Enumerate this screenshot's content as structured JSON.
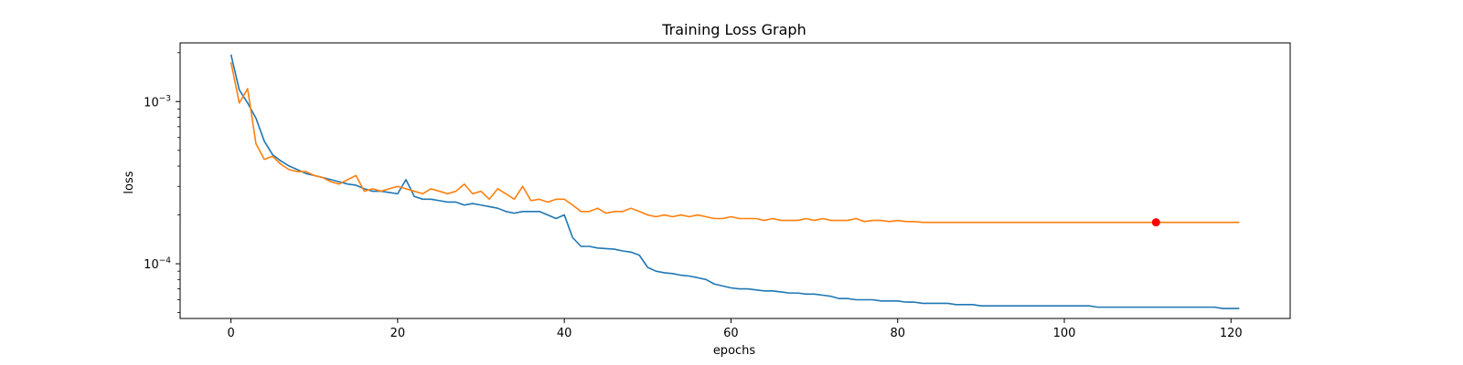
{
  "chart_data": {
    "type": "line",
    "title": "Training Loss Graph",
    "xlabel": "epochs",
    "ylabel": "loss",
    "yscale": "log",
    "xlim": [
      -6.1,
      127.1
    ],
    "ylim": [
      4.6e-05,
      0.0023
    ],
    "grid": false,
    "legend": "none",
    "x_ticks": [
      {
        "value": 0,
        "label": "0"
      },
      {
        "value": 20,
        "label": "20"
      },
      {
        "value": 40,
        "label": "40"
      },
      {
        "value": 60,
        "label": "60"
      },
      {
        "value": 80,
        "label": "80"
      },
      {
        "value": 100,
        "label": "100"
      },
      {
        "value": 120,
        "label": "120"
      }
    ],
    "y_major_ticks": [
      {
        "value": 0.0001,
        "base": "10",
        "exp": "−4"
      },
      {
        "value": 0.001,
        "base": "10",
        "exp": "−3"
      }
    ],
    "y_minor_ticks": [
      5e-05,
      6e-05,
      7e-05,
      8e-05,
      9e-05,
      0.0002,
      0.0003,
      0.0004,
      0.0005,
      0.0006,
      0.0007,
      0.0008,
      0.0009,
      0.002
    ],
    "series": [
      {
        "color": "#1f77b4",
        "values": [
          0.00195,
          0.00118,
          0.00098,
          0.00079,
          0.00057,
          0.00047,
          0.00043,
          0.0004,
          0.00038,
          0.00036,
          0.00035,
          0.00034,
          0.00033,
          0.00032,
          0.00031,
          0.000305,
          0.00029,
          0.00028,
          0.00028,
          0.000275,
          0.00027,
          0.00033,
          0.00026,
          0.00025,
          0.00025,
          0.000245,
          0.00024,
          0.00024,
          0.00023,
          0.000235,
          0.00023,
          0.000225,
          0.00022,
          0.00021,
          0.000205,
          0.00021,
          0.00021,
          0.00021,
          0.0002,
          0.00019,
          0.0002,
          0.000145,
          0.000128,
          0.000128,
          0.000125,
          0.000124,
          0.000123,
          0.00012,
          0.000118,
          0.000113,
          9.5e-05,
          9e-05,
          8.8e-05,
          8.7e-05,
          8.5e-05,
          8.4e-05,
          8.2e-05,
          8e-05,
          7.5e-05,
          7.3e-05,
          7.1e-05,
          7e-05,
          7e-05,
          6.9e-05,
          6.8e-05,
          6.8e-05,
          6.7e-05,
          6.6e-05,
          6.6e-05,
          6.5e-05,
          6.5e-05,
          6.4e-05,
          6.3e-05,
          6.1e-05,
          6.1e-05,
          6e-05,
          6e-05,
          6e-05,
          5.9e-05,
          5.9e-05,
          5.9e-05,
          5.8e-05,
          5.8e-05,
          5.7e-05,
          5.7e-05,
          5.7e-05,
          5.7e-05,
          5.6e-05,
          5.6e-05,
          5.6e-05,
          5.5e-05,
          5.5e-05,
          5.5e-05,
          5.5e-05,
          5.5e-05,
          5.5e-05,
          5.5e-05,
          5.5e-05,
          5.5e-05,
          5.5e-05,
          5.5e-05,
          5.5e-05,
          5.5e-05,
          5.5e-05,
          5.4e-05,
          5.4e-05,
          5.4e-05,
          5.4e-05,
          5.4e-05,
          5.4e-05,
          5.4e-05,
          5.4e-05,
          5.4e-05,
          5.4e-05,
          5.4e-05,
          5.4e-05,
          5.4e-05,
          5.4e-05,
          5.4e-05,
          5.3e-05,
          5.3e-05,
          5.3e-05
        ]
      },
      {
        "color": "#ff7f0e",
        "values": [
          0.00175,
          0.00098,
          0.0012,
          0.00055,
          0.00044,
          0.00046,
          0.00041,
          0.00038,
          0.00037,
          0.00037,
          0.00035,
          0.00034,
          0.00032,
          0.00031,
          0.00033,
          0.00035,
          0.00028,
          0.00029,
          0.00028,
          0.00029,
          0.0003,
          0.00029,
          0.00028,
          0.00027,
          0.00029,
          0.00028,
          0.00027,
          0.00028,
          0.00031,
          0.00027,
          0.00028,
          0.00025,
          0.00029,
          0.00027,
          0.00025,
          0.0003,
          0.000245,
          0.00025,
          0.00024,
          0.00025,
          0.00025,
          0.00023,
          0.00021,
          0.00021,
          0.00022,
          0.000205,
          0.00021,
          0.00021,
          0.00022,
          0.00021,
          0.0002,
          0.000195,
          0.0002,
          0.000195,
          0.0002,
          0.000195,
          0.0002,
          0.000195,
          0.00019,
          0.00019,
          0.000195,
          0.00019,
          0.00019,
          0.00019,
          0.000185,
          0.00019,
          0.000185,
          0.000185,
          0.000185,
          0.00019,
          0.000185,
          0.00019,
          0.000185,
          0.000185,
          0.000185,
          0.00019,
          0.000182,
          0.000185,
          0.000185,
          0.000182,
          0.000185,
          0.000182,
          0.000182,
          0.00018,
          0.00018,
          0.00018,
          0.00018,
          0.00018,
          0.00018,
          0.00018,
          0.00018,
          0.00018,
          0.00018,
          0.00018,
          0.00018,
          0.00018,
          0.00018,
          0.00018,
          0.00018,
          0.00018,
          0.00018,
          0.00018,
          0.00018,
          0.00018,
          0.00018,
          0.00018,
          0.00018,
          0.00018,
          0.00018,
          0.00018,
          0.00018,
          0.00018,
          0.00018,
          0.00018,
          0.00018,
          0.00018,
          0.00018,
          0.00018,
          0.00018,
          0.00018,
          0.00018,
          0.00018
        ]
      }
    ],
    "marker": {
      "x": 111,
      "y": 0.00018,
      "color": "#ff0000"
    }
  }
}
